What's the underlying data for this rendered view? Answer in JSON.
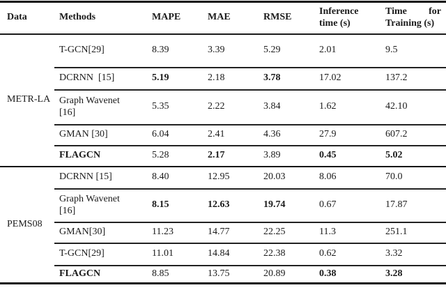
{
  "table": {
    "columns": {
      "data": "Data",
      "methods": "Methods",
      "mape": "MAPE",
      "mae": "MAE",
      "rmse": "RMSE",
      "inference_line1": "Inference",
      "inference_line2": "time (s)",
      "training_word1": "Time",
      "training_word2": "for",
      "training_line2": "Training (s)"
    },
    "sections": [
      {
        "dataset": "METR-LA",
        "rows": [
          {
            "method": "T-GCN[29]",
            "mape": "8.39",
            "mae": "3.39",
            "rmse": "5.29",
            "inference": "2.01",
            "training": "9.5",
            "bold": []
          },
          {
            "method": "DCRNN  [15]",
            "mape": "5.19",
            "mae": "2.18",
            "rmse": "3.78",
            "inference": "17.02",
            "training": "137.2",
            "bold": [
              "mape",
              "rmse"
            ]
          },
          {
            "method": "Graph Wavenet [16]",
            "mape": "5.35",
            "mae": "2.22",
            "rmse": "3.84",
            "inference": "1.62",
            "training": "42.10",
            "bold": []
          },
          {
            "method": "GMAN [30]",
            "mape": "6.04",
            "mae": "2.41",
            "rmse": "4.36",
            "inference": "27.9",
            "training": "607.2",
            "bold": []
          },
          {
            "method": "FLAGCN",
            "mape": "5.28",
            "mae": "2.17",
            "rmse": "3.89",
            "inference": "0.45",
            "training": "5.02",
            "bold": [
              "method",
              "mae",
              "inference",
              "training"
            ]
          }
        ]
      },
      {
        "dataset": "PEMS08",
        "rows": [
          {
            "method": "DCRNN [15]",
            "mape": "8.40",
            "mae": "12.95",
            "rmse": "20.03",
            "inference": "8.06",
            "training": "70.0",
            "bold": []
          },
          {
            "method": "Graph Wavenet [16]",
            "mape": "8.15",
            "mae": "12.63",
            "rmse": "19.74",
            "inference": "0.67",
            "training": "17.87",
            "bold": [
              "mape",
              "mae",
              "rmse"
            ]
          },
          {
            "method": "GMAN[30]",
            "mape": "11.23",
            "mae": "14.77",
            "rmse": "22.25",
            "inference": "11.3",
            "training": "251.1",
            "bold": []
          },
          {
            "method": "T-GCN[29]",
            "mape": "11.01",
            "mae": "14.84",
            "rmse": "22.38",
            "inference": "0.62",
            "training": "3.32",
            "bold": []
          },
          {
            "method": "FLAGCN",
            "mape": "8.85",
            "mae": "13.75",
            "rmse": "20.89",
            "inference": "0.38",
            "training": "3.28",
            "bold": [
              "method",
              "inference",
              "training"
            ]
          }
        ]
      }
    ]
  }
}
